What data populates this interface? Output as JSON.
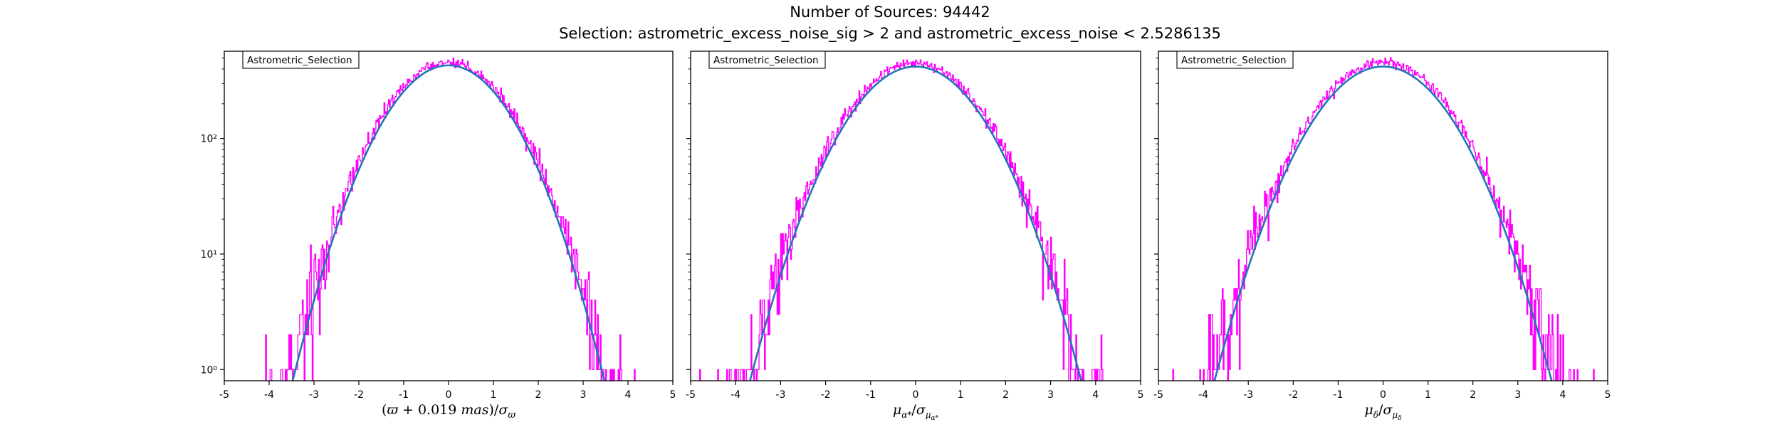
{
  "figure": {
    "title_line1": "Number of Sources: 94442",
    "title_line2": "Selection: astrometric_excess_noise_sig > 2 and astrometric_excess_noise < 2.5286135"
  },
  "colors": {
    "histogram": "#ff00ff",
    "fit_curve": "#1f77b4",
    "axes": "#000000",
    "background": "#ffffff"
  },
  "chart_data": [
    {
      "type": "line",
      "title": "",
      "legend_label": "Astrometric_Selection",
      "legend_placement": "upper-left",
      "xlabel": "(ϖ + 0.019 mas)/σϖ",
      "ylabel": "",
      "xlim": [
        -5,
        5
      ],
      "ylim": [
        0.8,
        570
      ],
      "yscale": "log",
      "grid": false,
      "xticks": [
        "-5",
        "-4",
        "-3",
        "-2",
        "-1",
        "0",
        "1",
        "2",
        "3",
        "4",
        "5"
      ],
      "yticks": [
        {
          "value": 1,
          "label": "10⁰"
        },
        {
          "value": 10,
          "label": "10¹"
        },
        {
          "value": 100,
          "label": "10²"
        }
      ],
      "series": [
        {
          "kind": "histogram-step",
          "x_range": [
            -5,
            5
          ],
          "bin_width": 0.02,
          "peak": 460,
          "sigma": 1.0
        },
        {
          "kind": "gaussian-fit",
          "amplitude": 430,
          "mean": 0.0,
          "sigma": 0.98
        }
      ]
    },
    {
      "type": "line",
      "title": "",
      "legend_label": "Astrometric_Selection",
      "legend_placement": "upper-left",
      "xlabel": "μα*/σμα*",
      "ylabel": "",
      "xlim": [
        -5,
        5
      ],
      "ylim": [
        0.8,
        570
      ],
      "yscale": "log",
      "grid": false,
      "xticks": [
        "-5",
        "-4",
        "-3",
        "-2",
        "-1",
        "0",
        "1",
        "2",
        "3",
        "4",
        "5"
      ],
      "yticks": [
        {
          "value": 1,
          "label": ""
        },
        {
          "value": 10,
          "label": ""
        },
        {
          "value": 100,
          "label": ""
        }
      ],
      "series": [
        {
          "kind": "histogram-step",
          "x_range": [
            -5,
            5
          ],
          "bin_width": 0.02,
          "peak": 455,
          "sigma": 1.06
        },
        {
          "kind": "gaussian-fit",
          "amplitude": 420,
          "mean": 0.0,
          "sigma": 1.04
        }
      ]
    },
    {
      "type": "line",
      "title": "",
      "legend_label": "Astrometric_Selection",
      "legend_placement": "upper-left",
      "xlabel": "μδ/σμδ",
      "ylabel": "",
      "xlim": [
        -5,
        5
      ],
      "ylim": [
        0.8,
        570
      ],
      "yscale": "log",
      "grid": false,
      "xticks": [
        "-5",
        "-4",
        "-3",
        "-2",
        "-1",
        "0",
        "1",
        "2",
        "3",
        "4",
        "5"
      ],
      "yticks": [
        {
          "value": 1,
          "label": ""
        },
        {
          "value": 10,
          "label": ""
        },
        {
          "value": 100,
          "label": ""
        }
      ],
      "series": [
        {
          "kind": "histogram-step",
          "x_range": [
            -5,
            5
          ],
          "bin_width": 0.02,
          "peak": 460,
          "sigma": 1.08
        },
        {
          "kind": "gaussian-fit",
          "amplitude": 420,
          "mean": 0.0,
          "sigma": 1.06
        }
      ]
    }
  ]
}
